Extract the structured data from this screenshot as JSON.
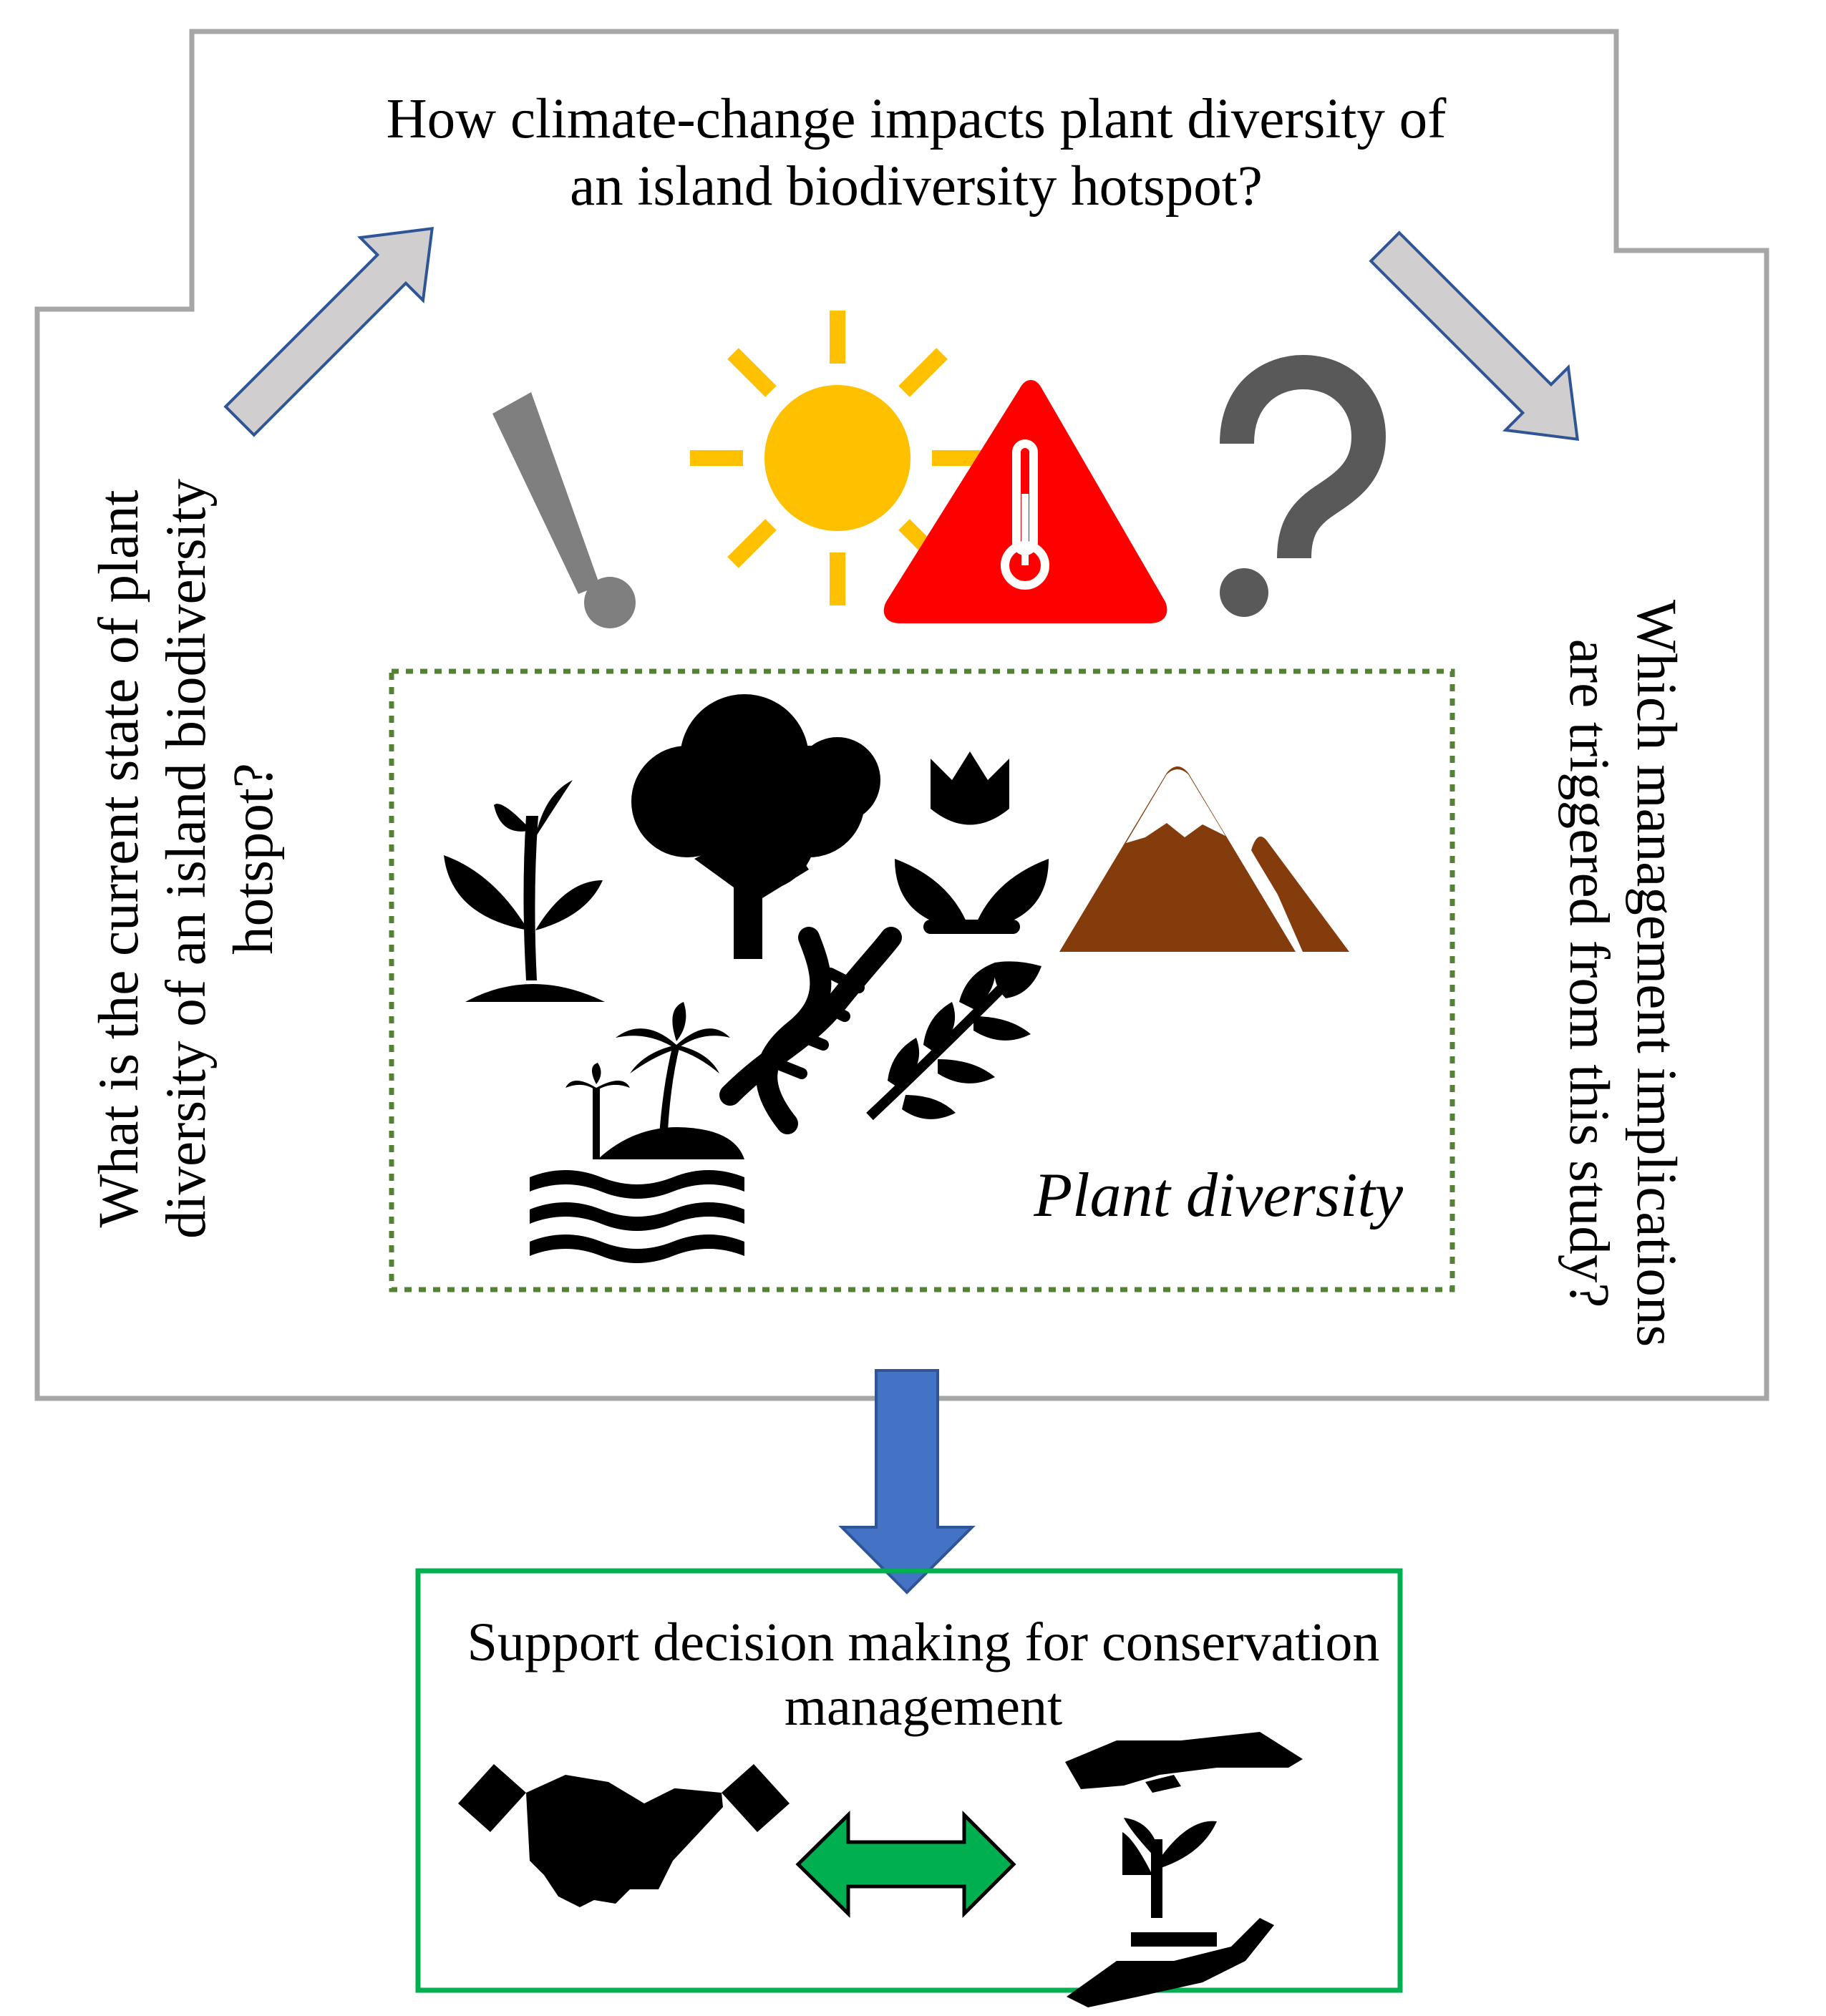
{
  "questions": {
    "top": "How climate-change impacts plant diversity of an island biodiversity hotspot?",
    "left": "What is the current state of plant diversity of an island biodiversity hotspot?",
    "right": "Which management implications are triggered from this study?"
  },
  "plant_box": {
    "label": "Plant diversity"
  },
  "outcome": {
    "title": "Support decision making for conservation management"
  },
  "icons": {
    "climate": [
      "exclamation-icon",
      "sun-icon",
      "temperature-warning-icon",
      "question-mark-icon"
    ],
    "plant": [
      "seedling-icon",
      "tree-icon",
      "tulip-icon",
      "mountain-icon",
      "island-palm-icon",
      "dna-icon",
      "leaf-branch-icon"
    ],
    "outcome": [
      "handshake-icon",
      "double-arrow-icon",
      "hands-protecting-plant-icon"
    ]
  },
  "colors": {
    "outline_gray": "#a6a6a6",
    "sun": "#ffc000",
    "warning": "#ff0000",
    "mountain": "#843c0c",
    "dotted_box": "#548235",
    "arrow_gray": "#d0cece",
    "arrow_outline": "#2f5597",
    "down_arrow": "#4472c4",
    "outcome_box": "#00b050",
    "double_arrow": "#00b050"
  }
}
